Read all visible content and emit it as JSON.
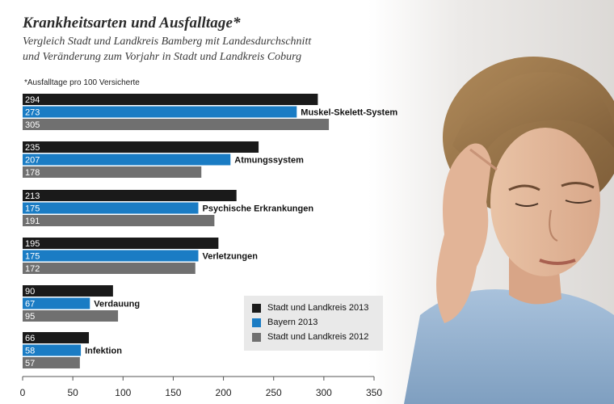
{
  "header": {
    "title": "Krankheitsarten und Ausfalltage*",
    "subtitle_line1": "Vergleich Stadt und Landkreis Bamberg mit Landesdurchschnitt",
    "subtitle_line2": "und Veränderung zum Vorjahr in Stadt und Landkreis Coburg",
    "unit_note": "*Ausfalltage pro 100 Versicherte"
  },
  "colors": {
    "series_2013": "#1a1a1a",
    "bayern_2013": "#1a7cc4",
    "series_2012": "#707070"
  },
  "chart_data": {
    "type": "bar",
    "orientation": "horizontal",
    "title": "Krankheitsarten und Ausfalltage*",
    "xlim": [
      0,
      350
    ],
    "xticks": [
      0,
      50,
      100,
      150,
      200,
      250,
      300,
      350
    ],
    "grid": false,
    "legend_position": "bottom-right",
    "categories": [
      "Muskel-Skelett-System",
      "Atmungssystem",
      "Psychische Erkrankungen",
      "Verletzungen",
      "Verdauung",
      "Infektion"
    ],
    "series": [
      {
        "name": "Stadt und Landkreis 2013",
        "values": [
          294,
          235,
          213,
          195,
          90,
          66
        ]
      },
      {
        "name": "Bayern 2013",
        "values": [
          273,
          207,
          175,
          175,
          67,
          58
        ]
      },
      {
        "name": "Stadt und Landkreis 2012",
        "values": [
          305,
          178,
          191,
          172,
          95,
          57
        ]
      }
    ]
  },
  "image": {
    "description_icon": "woman-with-headache-photo"
  }
}
